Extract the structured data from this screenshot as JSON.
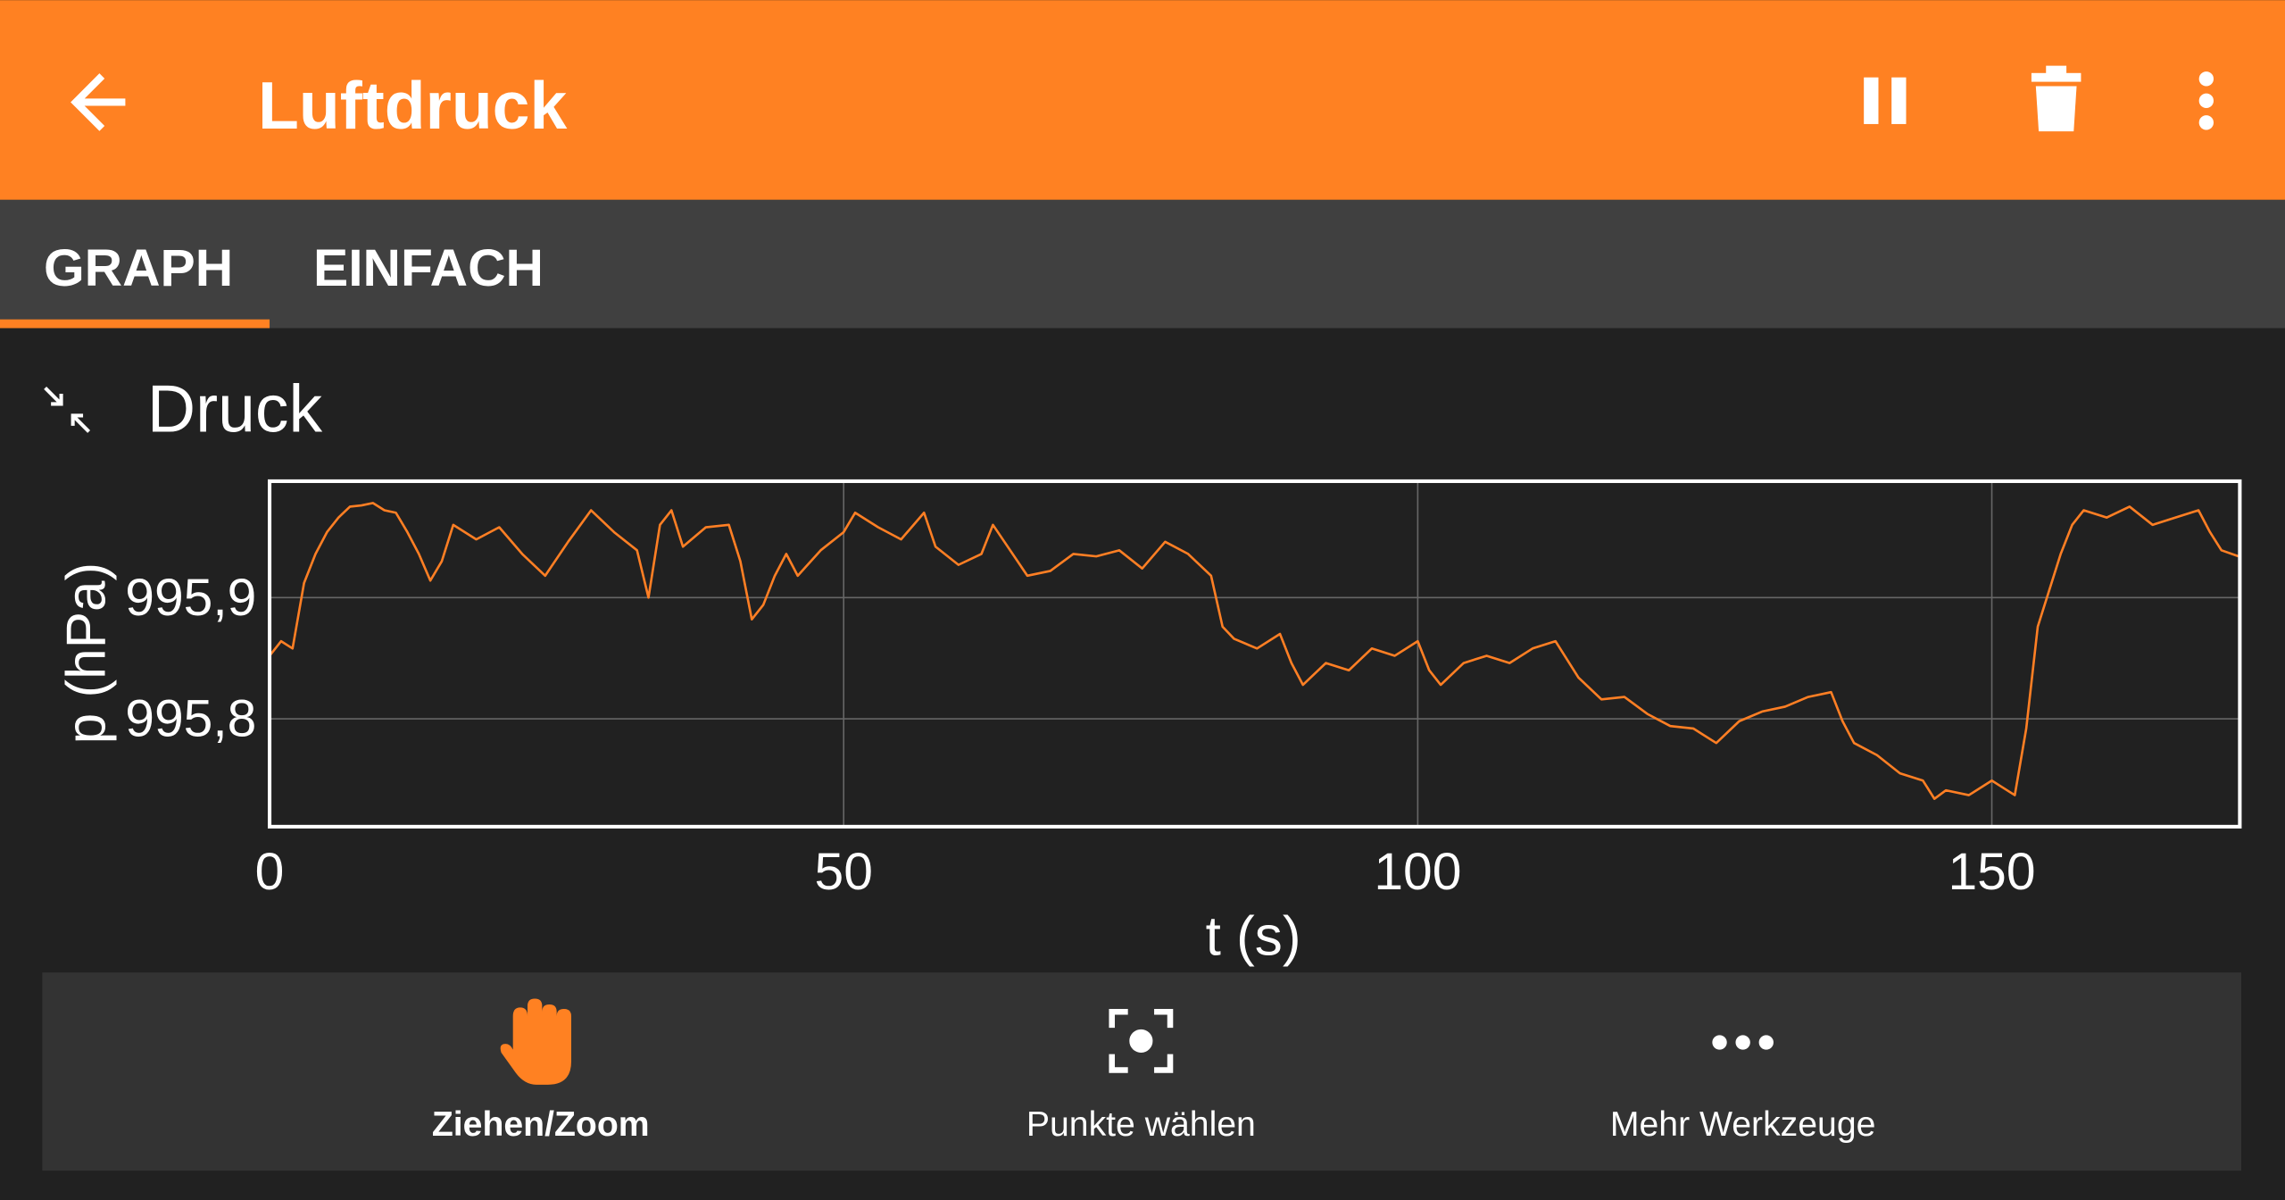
{
  "header": {
    "title": "Luftdruck"
  },
  "tabs": [
    "GRAPH",
    "EINFACH"
  ],
  "toolbar": [
    "Ziehen/Zoom",
    "Punkte wählen",
    "Mehr Werkzeuge"
  ],
  "chart_data": {
    "type": "line",
    "title": "Druck",
    "x_label": "t (s)",
    "y_label": "p (hPa)",
    "x": [
      0,
      1,
      2,
      3,
      4,
      5,
      6,
      7,
      8,
      9,
      10,
      11,
      12,
      13,
      14,
      15,
      16,
      17,
      18,
      20,
      22,
      24,
      26,
      28,
      30,
      32,
      33,
      34,
      35,
      36,
      38,
      40,
      41,
      42,
      43,
      44,
      45,
      46,
      48,
      50,
      51,
      53,
      55,
      57,
      58,
      60,
      62,
      63,
      64,
      66,
      68,
      70,
      72,
      74,
      76,
      78,
      80,
      82,
      83,
      84,
      86,
      88,
      89,
      90,
      92,
      94,
      96,
      98,
      100,
      101,
      102,
      104,
      106,
      108,
      110,
      112,
      114,
      116,
      118,
      120,
      122,
      124,
      126,
      128,
      130,
      132,
      134,
      136,
      137,
      138,
      140,
      142,
      144,
      145,
      146,
      148,
      150,
      151,
      152,
      153,
      154,
      155,
      156,
      157,
      158,
      160,
      162,
      164,
      166,
      168,
      169,
      170,
      171.5
    ],
    "series": [
      {
        "color": "#ff7f24",
        "values": [
          995.852,
          995.864,
          995.858,
          995.912,
          995.936,
          995.954,
          995.966,
          995.975,
          995.976,
          995.978,
          995.972,
          995.97,
          995.954,
          995.936,
          995.914,
          995.93,
          995.96,
          995.954,
          995.948,
          995.958,
          995.936,
          995.918,
          995.946,
          995.972,
          995.954,
          995.939,
          995.9,
          995.96,
          995.972,
          995.942,
          995.958,
          995.96,
          995.93,
          995.882,
          995.894,
          995.918,
          995.936,
          995.918,
          995.939,
          995.954,
          995.97,
          995.958,
          995.948,
          995.97,
          995.942,
          995.927,
          995.936,
          995.96,
          995.946,
          995.918,
          995.922,
          995.936,
          995.934,
          995.939,
          995.924,
          995.946,
          995.936,
          995.918,
          995.876,
          995.866,
          995.858,
          995.87,
          995.846,
          995.828,
          995.846,
          995.84,
          995.858,
          995.852,
          995.864,
          995.84,
          995.828,
          995.846,
          995.852,
          995.846,
          995.858,
          995.864,
          995.834,
          995.816,
          995.818,
          995.804,
          995.794,
          995.792,
          995.78,
          995.798,
          995.806,
          995.81,
          995.818,
          995.822,
          995.798,
          995.78,
          995.77,
          995.755,
          995.749,
          995.734,
          995.741,
          995.737,
          995.749,
          995.743,
          995.737,
          995.792,
          995.876,
          995.906,
          995.936,
          995.96,
          995.972,
          995.966,
          995.975,
          995.96,
          995.966,
          995.972,
          995.954,
          995.939,
          995.934
        ]
      }
    ],
    "xlim": [
      0,
      171.6
    ],
    "ylim": [
      995.711,
      995.996
    ],
    "xticks": [
      0,
      50,
      100,
      150
    ],
    "yticks": [
      {
        "value": 995.8,
        "label": "995,8"
      },
      {
        "value": 995.9,
        "label": "995,9"
      }
    ],
    "grid": true
  }
}
